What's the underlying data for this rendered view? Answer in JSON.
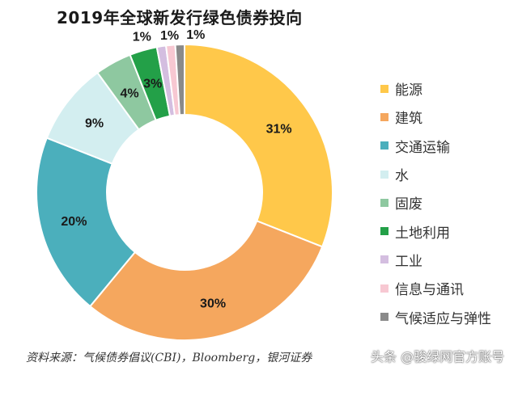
{
  "chart_data": {
    "type": "pie",
    "title": "2019年全球新发行绿色债券投向",
    "categories": [
      "能源",
      "建筑",
      "交通运输",
      "水",
      "固废",
      "土地利用",
      "工业",
      "信息与通讯",
      "气候适应与弹性"
    ],
    "values": [
      31,
      30,
      20,
      9,
      4,
      3,
      1,
      1,
      1
    ],
    "labels": [
      "31%",
      "30%",
      "20%",
      "9%",
      "4%",
      "3%",
      "1%",
      "1%",
      "1%"
    ],
    "colors": [
      "#FFC84A",
      "#F5A75E",
      "#4BAFBC",
      "#D3EEF0",
      "#8EC8A0",
      "#23A048",
      "#D4BEE0",
      "#F7C8D2",
      "#8A8A8A"
    ],
    "legend_position": "right",
    "donut": true
  },
  "source": "资料来源：气候债券倡议(CBI)，Bloomberg，银河证券",
  "watermark": "头条 @骏绿网官方账号"
}
